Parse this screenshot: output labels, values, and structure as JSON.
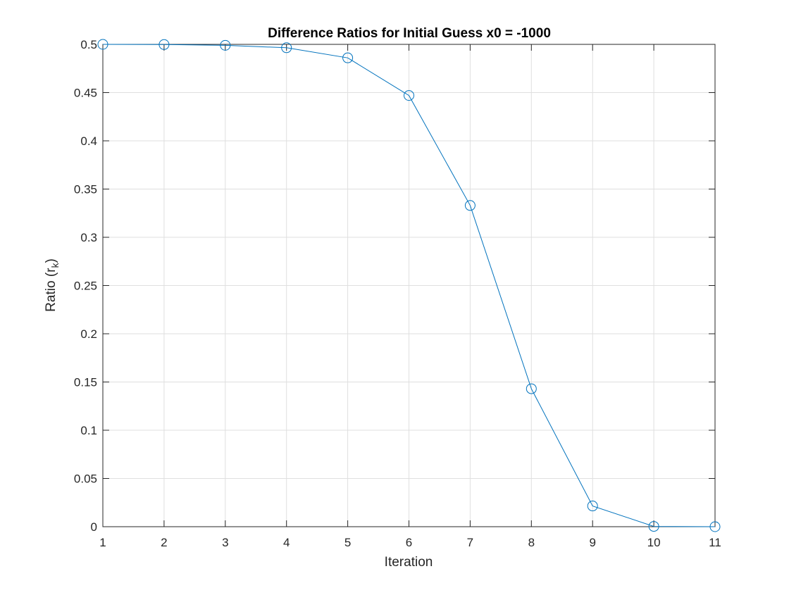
{
  "chart_data": {
    "type": "line",
    "title": "Difference Ratios for Initial Guess x0 = -1000",
    "xlabel": "Iteration",
    "ylabel": "Ratio (r",
    "ylabel_subscript": "k",
    "ylabel_close": ")",
    "xlim": [
      1,
      11
    ],
    "ylim": [
      0,
      0.5
    ],
    "xticks": [
      1,
      2,
      3,
      4,
      5,
      6,
      7,
      8,
      9,
      10,
      11
    ],
    "xtick_labels": [
      "1",
      "2",
      "3",
      "4",
      "5",
      "6",
      "7",
      "8",
      "9",
      "10",
      "11"
    ],
    "yticks": [
      0,
      0.05,
      0.1,
      0.15,
      0.2,
      0.25,
      0.3,
      0.35,
      0.4,
      0.45,
      0.5
    ],
    "ytick_labels": [
      "0",
      "0.05",
      "0.1",
      "0.15",
      "0.2",
      "0.25",
      "0.3",
      "0.35",
      "0.4",
      "0.45",
      "0.5"
    ],
    "grid": true,
    "marker": "circle",
    "color": "#0072bd",
    "x": [
      1,
      2,
      3,
      4,
      5,
      6,
      7,
      8,
      9,
      10,
      11
    ],
    "series": [
      {
        "values": [
          0.5,
          0.4998,
          0.499,
          0.4965,
          0.486,
          0.447,
          0.333,
          0.143,
          0.0215,
          0.0003,
          0.0
        ]
      }
    ]
  }
}
